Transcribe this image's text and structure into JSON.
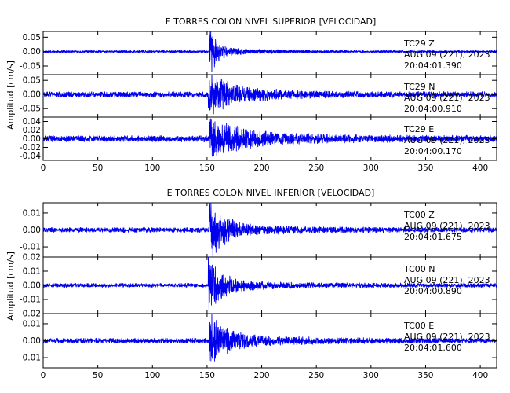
{
  "chart_data": [
    {
      "type": "line",
      "title": "E TORRES COLON NIVEL SUPERIOR [VELOCIDAD]",
      "ylabel": "Amplitud [cm/s]",
      "xlim": [
        0,
        415
      ],
      "x_ticks": [
        "0",
        "50",
        "100",
        "150",
        "200",
        "250",
        "300",
        "350",
        "400"
      ],
      "grid": false,
      "panels": [
        {
          "station": "TC29",
          "component": "Z",
          "date": "AUG 09 (221), 2023",
          "time": "20:04:01.390",
          "ylim": [
            -0.08,
            0.07
          ],
          "y_ticks": [
            {
              "v": 0.05,
              "label": "0.05"
            },
            {
              "v": 0.0,
              "label": "0.00"
            },
            {
              "v": -0.05,
              "label": "-0.05"
            }
          ],
          "noise": 0.0035,
          "event_start": 152,
          "peak": 0.07,
          "decay": 6,
          "coda": 0.01,
          "coda_decay": 40,
          "seed": 11
        },
        {
          "station": "TC29",
          "component": "N",
          "date": "AUG 09 (221), 2023",
          "time": "20:04:00.910",
          "ylim": [
            -0.08,
            0.07
          ],
          "y_ticks": [
            {
              "v": 0.05,
              "label": "0.05"
            },
            {
              "v": 0.0,
              "label": "0.00"
            },
            {
              "v": -0.05,
              "label": "-0.05"
            }
          ],
          "noise": 0.008,
          "event_start": 151,
          "peak": 0.045,
          "decay": 20,
          "coda": 0.015,
          "coda_decay": 60,
          "seed": 23
        },
        {
          "station": "TC29",
          "component": "E",
          "date": "AUG 09 (221), 2023",
          "time": "20:04:00.170",
          "ylim": [
            -0.05,
            0.05
          ],
          "y_ticks": [
            {
              "v": 0.04,
              "label": "0.04"
            },
            {
              "v": 0.02,
              "label": "0.02"
            },
            {
              "v": 0.0,
              "label": "0.00"
            },
            {
              "v": -0.02,
              "label": "-0.02"
            },
            {
              "v": -0.04,
              "label": "-0.04"
            }
          ],
          "noise": 0.006,
          "event_start": 152,
          "peak": 0.03,
          "decay": 28,
          "coda": 0.008,
          "coda_decay": 80,
          "seed": 37
        }
      ]
    },
    {
      "type": "line",
      "title": "E TORRES COLON NIVEL INFERIOR [VELOCIDAD]",
      "ylabel": "Amplitud [cm/s]",
      "xlim": [
        0,
        415
      ],
      "x_ticks": [
        "0",
        "50",
        "100",
        "150",
        "200",
        "250",
        "300",
        "350",
        "400"
      ],
      "grid": false,
      "panels": [
        {
          "station": "TC00",
          "component": "Z",
          "date": "AUG 09 (221), 2023",
          "time": "20:04:01.675",
          "ylim": [
            -0.016,
            0.016
          ],
          "y_ticks": [
            {
              "v": 0.01,
              "label": "0.01"
            },
            {
              "v": 0.0,
              "label": "0.00"
            },
            {
              "v": -0.01,
              "label": "-0.01"
            }
          ],
          "noise": 0.0012,
          "event_start": 152,
          "peak": 0.015,
          "decay": 10,
          "coda": 0.003,
          "coda_decay": 50,
          "seed": 41
        },
        {
          "station": "TC00",
          "component": "N",
          "date": "AUG 09 (221), 2023",
          "time": "20:04:00.890",
          "ylim": [
            -0.02,
            0.02
          ],
          "y_ticks": [
            {
              "v": 0.02,
              "label": "0.02"
            },
            {
              "v": 0.01,
              "label": "0.01"
            },
            {
              "v": 0.0,
              "label": "0.00"
            },
            {
              "v": -0.01,
              "label": "-0.01"
            },
            {
              "v": -0.02,
              "label": "-0.02"
            }
          ],
          "noise": 0.0012,
          "event_start": 151,
          "peak": 0.016,
          "decay": 10,
          "coda": 0.003,
          "coda_decay": 50,
          "seed": 53
        },
        {
          "station": "TC00",
          "component": "E",
          "date": "AUG 09 (221), 2023",
          "time": "20:04:01.600",
          "ylim": [
            -0.016,
            0.016
          ],
          "y_ticks": [
            {
              "v": 0.01,
              "label": "0.01"
            },
            {
              "v": 0.0,
              "label": "0.00"
            },
            {
              "v": -0.01,
              "label": "-0.01"
            }
          ],
          "noise": 0.0012,
          "event_start": 152,
          "peak": 0.012,
          "decay": 12,
          "coda": 0.003,
          "coda_decay": 60,
          "seed": 67
        }
      ]
    }
  ],
  "colors": {
    "trace": "#0000ee",
    "axes": "#000000",
    "background": "#ffffff"
  }
}
